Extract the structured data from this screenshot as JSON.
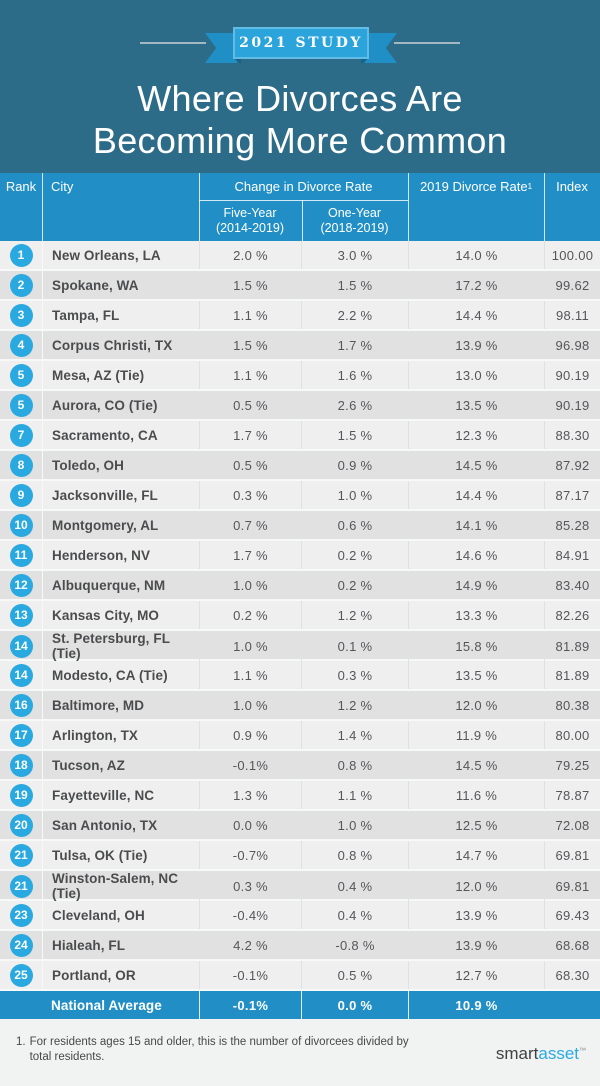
{
  "colors": {
    "hero_background": "#2d6c89",
    "table_header_blue": "#218fc6",
    "rank_circle_blue": "#29a9e0",
    "ribbon_blue": "#2ba4dc",
    "row_light": "#efefef",
    "row_dark": "#e1e1e1",
    "logo_blue": "#29aae1"
  },
  "hero": {
    "badge": "2021 STUDY",
    "title_line1": "Where Divorces Are",
    "title_line2": "Becoming More Common"
  },
  "table": {
    "headers": {
      "rank": "Rank",
      "city": "City",
      "change_group": "Change in Divorce Rate",
      "five_year_line1": "Five-Year",
      "five_year_line2": "(2014-2019)",
      "one_year_line1": "One-Year",
      "one_year_line2": "(2018-2019)",
      "rate_2019": "2019 Divorce Rate",
      "rate_2019_footnote_mark": "1",
      "index": "Index"
    }
  },
  "chart_data": {
    "type": "table",
    "title": "Where Divorces Are Becoming More Common",
    "subtitle": "2021 STUDY",
    "columns": [
      "Rank",
      "City",
      "Five-Year Change (2014-2019)",
      "One-Year Change (2018-2019)",
      "2019 Divorce Rate",
      "Index"
    ],
    "rows": [
      {
        "rank": "1",
        "city": "New Orleans, LA",
        "five_year": "2.0 %",
        "one_year": "3.0 %",
        "rate_2019": "14.0 %",
        "index": "100.00"
      },
      {
        "rank": "2",
        "city": "Spokane, WA",
        "five_year": "1.5 %",
        "one_year": "1.5 %",
        "rate_2019": "17.2 %",
        "index": "99.62"
      },
      {
        "rank": "3",
        "city": "Tampa, FL",
        "five_year": "1.1 %",
        "one_year": "2.2 %",
        "rate_2019": "14.4 %",
        "index": "98.11"
      },
      {
        "rank": "4",
        "city": "Corpus Christi, TX",
        "five_year": "1.5 %",
        "one_year": "1.7 %",
        "rate_2019": "13.9 %",
        "index": "96.98"
      },
      {
        "rank": "5",
        "city": "Mesa, AZ (Tie)",
        "five_year": "1.1 %",
        "one_year": "1.6 %",
        "rate_2019": "13.0 %",
        "index": "90.19"
      },
      {
        "rank": "5",
        "city": "Aurora, CO (Tie)",
        "five_year": "0.5 %",
        "one_year": "2.6 %",
        "rate_2019": "13.5 %",
        "index": "90.19"
      },
      {
        "rank": "7",
        "city": "Sacramento, CA",
        "five_year": "1.7 %",
        "one_year": "1.5 %",
        "rate_2019": "12.3 %",
        "index": "88.30"
      },
      {
        "rank": "8",
        "city": "Toledo, OH",
        "five_year": "0.5 %",
        "one_year": "0.9 %",
        "rate_2019": "14.5 %",
        "index": "87.92"
      },
      {
        "rank": "9",
        "city": "Jacksonville, FL",
        "five_year": "0.3 %",
        "one_year": "1.0 %",
        "rate_2019": "14.4 %",
        "index": "87.17"
      },
      {
        "rank": "10",
        "city": "Montgomery, AL",
        "five_year": "0.7 %",
        "one_year": "0.6 %",
        "rate_2019": "14.1 %",
        "index": "85.28"
      },
      {
        "rank": "11",
        "city": "Henderson, NV",
        "five_year": "1.7 %",
        "one_year": "0.2 %",
        "rate_2019": "14.6 %",
        "index": "84.91"
      },
      {
        "rank": "12",
        "city": "Albuquerque, NM",
        "five_year": "1.0 %",
        "one_year": "0.2 %",
        "rate_2019": "14.9 %",
        "index": "83.40"
      },
      {
        "rank": "13",
        "city": "Kansas City, MO",
        "five_year": "0.2 %",
        "one_year": "1.2 %",
        "rate_2019": "13.3 %",
        "index": "82.26"
      },
      {
        "rank": "14",
        "city": "St. Petersburg, FL (Tie)",
        "five_year": "1.0 %",
        "one_year": "0.1 %",
        "rate_2019": "15.8 %",
        "index": "81.89"
      },
      {
        "rank": "14",
        "city": "Modesto, CA (Tie)",
        "five_year": "1.1 %",
        "one_year": "0.3 %",
        "rate_2019": "13.5 %",
        "index": "81.89"
      },
      {
        "rank": "16",
        "city": "Baltimore, MD",
        "five_year": "1.0 %",
        "one_year": "1.2 %",
        "rate_2019": "12.0 %",
        "index": "80.38"
      },
      {
        "rank": "17",
        "city": "Arlington, TX",
        "five_year": "0.9 %",
        "one_year": "1.4 %",
        "rate_2019": "11.9 %",
        "index": "80.00"
      },
      {
        "rank": "18",
        "city": "Tucson, AZ",
        "five_year": "-0.1%",
        "one_year": "0.8 %",
        "rate_2019": "14.5 %",
        "index": "79.25"
      },
      {
        "rank": "19",
        "city": "Fayetteville, NC",
        "five_year": "1.3 %",
        "one_year": "1.1 %",
        "rate_2019": "11.6 %",
        "index": "78.87"
      },
      {
        "rank": "20",
        "city": "San Antonio, TX",
        "five_year": "0.0 %",
        "one_year": "1.0 %",
        "rate_2019": "12.5 %",
        "index": "72.08"
      },
      {
        "rank": "21",
        "city": "Tulsa, OK (Tie)",
        "five_year": "-0.7%",
        "one_year": "0.8 %",
        "rate_2019": "14.7 %",
        "index": "69.81"
      },
      {
        "rank": "21",
        "city": "Winston-Salem, NC (Tie)",
        "five_year": "0.3 %",
        "one_year": "0.4 %",
        "rate_2019": "12.0 %",
        "index": "69.81"
      },
      {
        "rank": "23",
        "city": "Cleveland, OH",
        "five_year": "-0.4%",
        "one_year": "0.4 %",
        "rate_2019": "13.9 %",
        "index": "69.43"
      },
      {
        "rank": "24",
        "city": "Hialeah, FL",
        "five_year": "4.2 %",
        "one_year": "-0.8 %",
        "rate_2019": "13.9 %",
        "index": "68.68"
      },
      {
        "rank": "25",
        "city": "Portland, OR",
        "five_year": "-0.1%",
        "one_year": "0.5 %",
        "rate_2019": "12.7 %",
        "index": "68.30"
      }
    ],
    "national_average": {
      "label": "National Average",
      "five_year": "-0.1%",
      "one_year": "0.0 %",
      "rate_2019": "10.9 %",
      "index": ""
    }
  },
  "footer": {
    "note_marker": "1.",
    "note_line1": "For residents ages 15 and older, this is the number of divorcees divided by",
    "note_line2": "total residents.",
    "logo_part1": "smart",
    "logo_part2": "asset",
    "logo_tm": "™"
  }
}
